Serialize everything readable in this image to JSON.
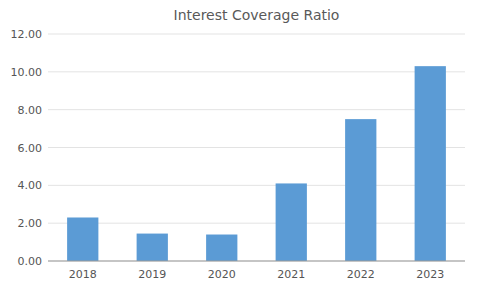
{
  "chart_data": {
    "type": "bar",
    "title": "Interest Coverage Ratio",
    "categories": [
      "2018",
      "2019",
      "2020",
      "2021",
      "2022",
      "2023"
    ],
    "values": [
      2.3,
      1.45,
      1.4,
      4.1,
      7.5,
      10.3
    ],
    "color": "#5B9BD5",
    "ylim": [
      0,
      12.0
    ],
    "yticks": [
      {
        "value": 0,
        "label": "0.00"
      },
      {
        "value": 2,
        "label": "2.00"
      },
      {
        "value": 4,
        "label": "4.00"
      },
      {
        "value": 6,
        "label": "6.00"
      },
      {
        "value": 8,
        "label": "8.00"
      },
      {
        "value": 10,
        "label": "10.00"
      },
      {
        "value": 12,
        "label": "12.00"
      }
    ],
    "grid": true
  }
}
